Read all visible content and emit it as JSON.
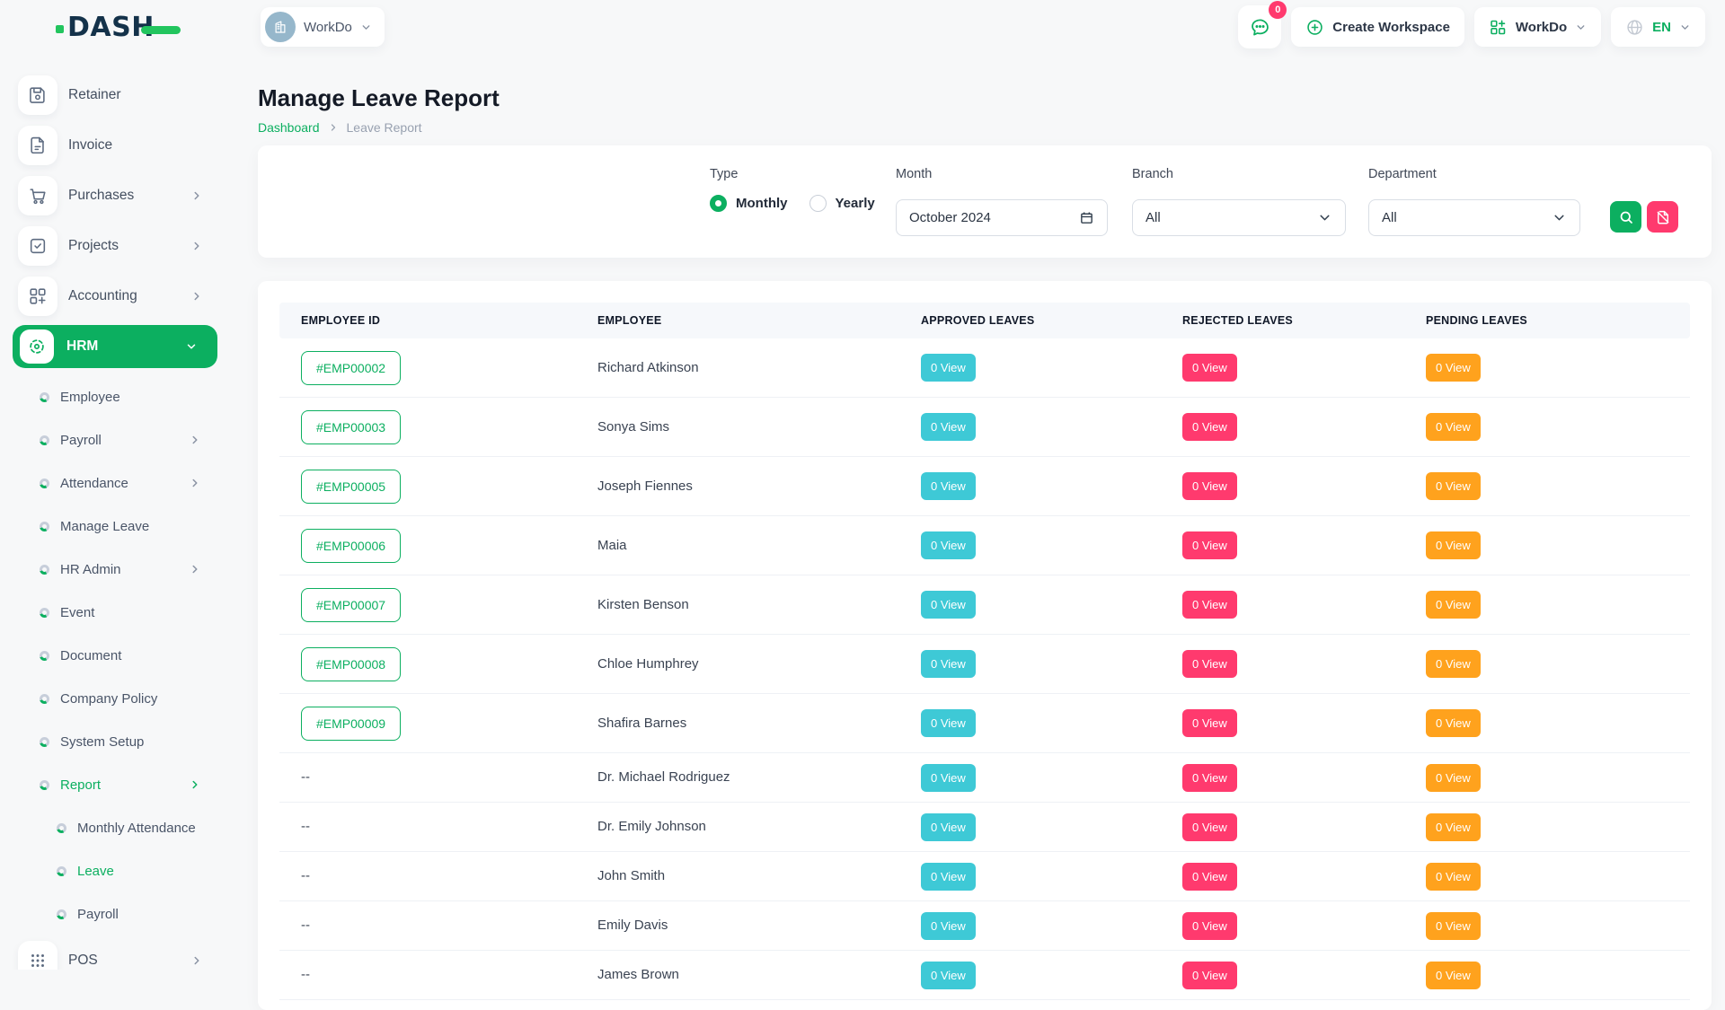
{
  "brand": {
    "name": "DASH"
  },
  "topbar": {
    "workspace_switcher": {
      "label": "WorkDo"
    },
    "messages_badge": "0",
    "create_workspace": {
      "label": "Create Workspace"
    },
    "apps_menu": {
      "label": "WorkDo"
    },
    "language": {
      "label": "EN"
    }
  },
  "sidebar": {
    "top_items": [
      {
        "label": "Retainer",
        "icon": "save-icon",
        "has_chevron": false
      },
      {
        "label": "Invoice",
        "icon": "invoice-icon",
        "has_chevron": false
      },
      {
        "label": "Purchases",
        "icon": "cart-icon",
        "has_chevron": true
      },
      {
        "label": "Projects",
        "icon": "check-square-icon",
        "has_chevron": true
      },
      {
        "label": "Accounting",
        "icon": "grid-plus-icon",
        "has_chevron": true
      }
    ],
    "hrm": {
      "label": "HRM"
    },
    "hrm_items": [
      {
        "label": "Employee",
        "has_chevron": false,
        "active": false
      },
      {
        "label": "Payroll",
        "has_chevron": true,
        "active": false
      },
      {
        "label": "Attendance",
        "has_chevron": true,
        "active": false
      },
      {
        "label": "Manage Leave",
        "has_chevron": false,
        "active": false
      },
      {
        "label": "HR Admin",
        "has_chevron": true,
        "active": false
      },
      {
        "label": "Event",
        "has_chevron": false,
        "active": false
      },
      {
        "label": "Document",
        "has_chevron": false,
        "active": false
      },
      {
        "label": "Company Policy",
        "has_chevron": false,
        "active": false
      },
      {
        "label": "System Setup",
        "has_chevron": false,
        "active": false
      },
      {
        "label": "Report",
        "has_chevron": true,
        "active": true
      }
    ],
    "report_items": [
      {
        "label": "Monthly Attendance",
        "active": false
      },
      {
        "label": "Leave",
        "active": true
      },
      {
        "label": "Payroll",
        "active": false
      }
    ],
    "pos": {
      "label": "POS"
    }
  },
  "page": {
    "title": "Manage Leave Report",
    "breadcrumb": {
      "home": "Dashboard",
      "current": "Leave Report"
    }
  },
  "filters": {
    "type": {
      "label": "Type",
      "options": [
        {
          "label": "Monthly",
          "selected": true
        },
        {
          "label": "Yearly",
          "selected": false
        }
      ]
    },
    "month": {
      "label": "Month",
      "value": "October 2024"
    },
    "branch": {
      "label": "Branch",
      "value": "All"
    },
    "department": {
      "label": "Department",
      "value": "All"
    }
  },
  "table": {
    "columns": [
      "EMPLOYEE ID",
      "EMPLOYEE",
      "APPROVED LEAVES",
      "REJECTED LEAVES",
      "PENDING LEAVES"
    ],
    "rows": [
      {
        "employee_id": "#EMP00002",
        "employee": "Richard Atkinson",
        "approved": "0 View",
        "rejected": "0 View",
        "pending": "0 View"
      },
      {
        "employee_id": "#EMP00003",
        "employee": "Sonya Sims",
        "approved": "0 View",
        "rejected": "0 View",
        "pending": "0 View"
      },
      {
        "employee_id": "#EMP00005",
        "employee": "Joseph Fiennes",
        "approved": "0 View",
        "rejected": "0 View",
        "pending": "0 View"
      },
      {
        "employee_id": "#EMP00006",
        "employee": "Maia",
        "approved": "0 View",
        "rejected": "0 View",
        "pending": "0 View"
      },
      {
        "employee_id": "#EMP00007",
        "employee": "Kirsten Benson",
        "approved": "0 View",
        "rejected": "0 View",
        "pending": "0 View"
      },
      {
        "employee_id": "#EMP00008",
        "employee": "Chloe Humphrey",
        "approved": "0 View",
        "rejected": "0 View",
        "pending": "0 View"
      },
      {
        "employee_id": "#EMP00009",
        "employee": "Shafira Barnes",
        "approved": "0 View",
        "rejected": "0 View",
        "pending": "0 View"
      },
      {
        "employee_id": "--",
        "employee": "Dr. Michael Rodriguez",
        "approved": "0 View",
        "rejected": "0 View",
        "pending": "0 View"
      },
      {
        "employee_id": "--",
        "employee": "Dr. Emily Johnson",
        "approved": "0 View",
        "rejected": "0 View",
        "pending": "0 View"
      },
      {
        "employee_id": "--",
        "employee": "John Smith",
        "approved": "0 View",
        "rejected": "0 View",
        "pending": "0 View"
      },
      {
        "employee_id": "--",
        "employee": "Emily Davis",
        "approved": "0 View",
        "rejected": "0 View",
        "pending": "0 View"
      },
      {
        "employee_id": "--",
        "employee": "James Brown",
        "approved": "0 View",
        "rejected": "0 View",
        "pending": "0 View"
      }
    ]
  },
  "colors": {
    "primary": "#0CAF60",
    "info": "#3EC9D6",
    "danger": "#FF3A6E",
    "warning": "#FFA21D",
    "logo_accent": "#22C55E",
    "logo_navy": "#14324A"
  }
}
